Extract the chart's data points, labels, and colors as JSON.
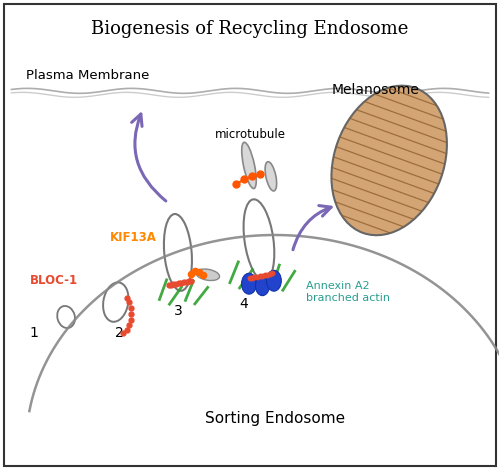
{
  "title": "Biogenesis of Recycling Endosome",
  "title_fontsize": 13,
  "bg_color": "#ffffff",
  "border_color": "#333333",
  "plasma_membrane_label": "Plasma Membrane",
  "sorting_endosome_label": "Sorting Endosome",
  "melanosome_label": "Melanosome",
  "microtubule_label": "microtubule",
  "bloc1_label": "BLOC-1",
  "kif13a_label": "KIF13A",
  "annexin_label": "Annexin A2\nbranched actin",
  "label_color_red": "#e84a2f",
  "label_color_teal": "#2a9d8f",
  "label_color_green": "#3a9e3a",
  "arrow_color": "#7b68b5",
  "melanosome_fill": "#d4a574",
  "melanosome_stripe": "#8b5a2b",
  "figsize": [
    5.0,
    4.7
  ],
  "dpi": 100
}
